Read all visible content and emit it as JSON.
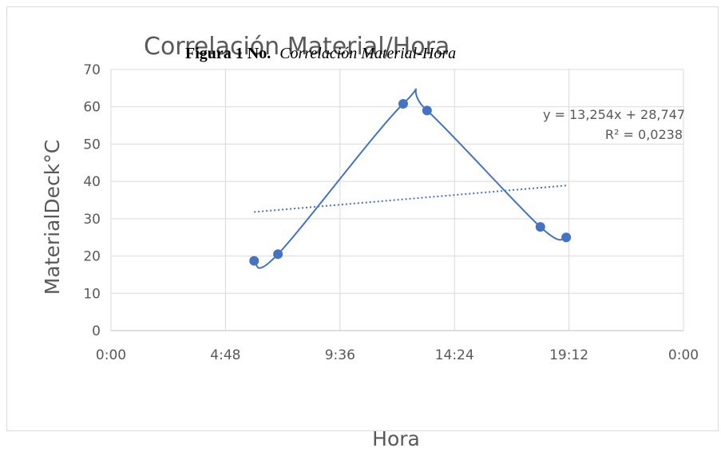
{
  "chart_data": {
    "type": "scatter",
    "title": "Correlación Material/Hora",
    "figure_caption_bold": "Figura 1 No.",
    "figure_caption_italic": "Correlación Material-Hora",
    "xlabel": "Hora",
    "ylabel": "MaterialDeck°C",
    "xlim": [
      "0:00",
      "0:00"
    ],
    "ylim": [
      0,
      70
    ],
    "x_ticks": [
      "0:00",
      "4:48",
      "9:36",
      "14:24",
      "19:12",
      "0:00"
    ],
    "y_ticks": [
      0,
      10,
      20,
      30,
      40,
      50,
      60,
      70
    ],
    "grid": true,
    "series": [
      {
        "x": [
          "6:00",
          "7:00",
          "12:15",
          "13:15",
          "18:00",
          "19:05"
        ],
        "values": [
          18.7,
          20.5,
          60.8,
          59.0,
          27.8,
          25.0
        ],
        "color": "#4472c4",
        "line": "smoothed"
      }
    ],
    "trendline": {
      "type": "linear",
      "x_start": "6:00",
      "x_end": "19:05",
      "y_start": 31.8,
      "y_end": 38.9,
      "color": "#4472c4",
      "style": "dotted",
      "equation": "y = 13,254x + 28,747",
      "r_squared": "R² = 0,0238"
    }
  }
}
